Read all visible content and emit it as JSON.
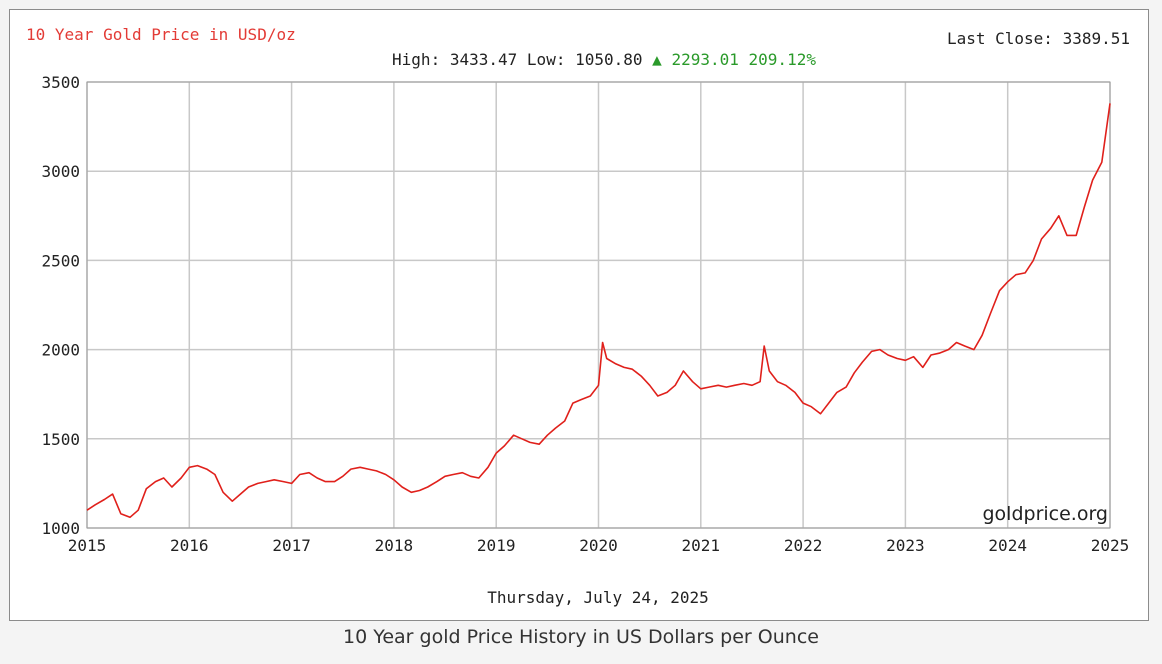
{
  "chart_data": {
    "type": "line",
    "title": "10 Year Gold Price in USD/oz",
    "stats": {
      "high_label": "High:",
      "high": "3433.47",
      "low_label": "Low:",
      "low": "1050.80",
      "change_arrow": "▲",
      "change": "2293.01",
      "change_pct": "209.12%"
    },
    "last_close_label": "Last Close:",
    "last_close": "3389.51",
    "date_label": "Thursday, July 24, 2025",
    "watermark": "goldprice.org",
    "xlabel": "",
    "ylabel": "",
    "xlim": [
      2015,
      2025
    ],
    "ylim": [
      1000,
      3500
    ],
    "x_ticks": [
      "2015",
      "2016",
      "2017",
      "2018",
      "2019",
      "2020",
      "2021",
      "2022",
      "2023",
      "2024",
      "2025"
    ],
    "y_ticks": [
      "1000",
      "1500",
      "2000",
      "2500",
      "3000",
      "3500"
    ],
    "grid": true,
    "colors": {
      "line": "#e0201b",
      "title": "#e33b36",
      "change": "#2a9a2a",
      "grid": "#c8c8c8",
      "axis_text": "#222222"
    },
    "series": [
      {
        "x": [
          2015.0,
          2015.08,
          2015.17,
          2015.25,
          2015.33,
          2015.42,
          2015.5,
          2015.58,
          2015.67,
          2015.75,
          2015.83,
          2015.92,
          2016.0,
          2016.08,
          2016.17,
          2016.25,
          2016.33,
          2016.42,
          2016.5,
          2016.58,
          2016.67,
          2016.75,
          2016.83,
          2016.92,
          2017.0,
          2017.08,
          2017.17,
          2017.25,
          2017.33,
          2017.42,
          2017.5,
          2017.58,
          2017.67,
          2017.75,
          2017.83,
          2017.92,
          2018.0,
          2018.08,
          2018.17,
          2018.25,
          2018.33,
          2018.42,
          2018.5,
          2018.58,
          2018.67,
          2018.75,
          2018.83,
          2018.92,
          2019.0,
          2019.08,
          2019.17,
          2019.25,
          2019.33,
          2019.42,
          2019.5,
          2019.58,
          2019.67,
          2019.75,
          2019.83,
          2019.92,
          2020.0,
          2020.04,
          2020.08,
          2020.17,
          2020.25,
          2020.33,
          2020.42,
          2020.5,
          2020.58,
          2020.67,
          2020.75,
          2020.83,
          2020.92,
          2021.0,
          2021.08,
          2021.17,
          2021.25,
          2021.33,
          2021.42,
          2021.5,
          2021.58,
          2021.62,
          2021.67,
          2021.75,
          2021.83,
          2021.92,
          2022.0,
          2022.08,
          2022.17,
          2022.25,
          2022.33,
          2022.42,
          2022.5,
          2022.58,
          2022.67,
          2022.75,
          2022.83,
          2022.92,
          2023.0,
          2023.08,
          2023.17,
          2023.25,
          2023.33,
          2023.42,
          2023.5,
          2023.58,
          2023.67,
          2023.75,
          2023.83,
          2023.92,
          2024.0,
          2024.08,
          2024.17,
          2024.25,
          2024.33,
          2024.42,
          2024.5,
          2024.58,
          2024.67,
          2024.75,
          2024.83,
          2024.92,
          2025.0
        ],
        "values": [
          1100,
          1130,
          1160,
          1190,
          1080,
          1060,
          1100,
          1220,
          1260,
          1280,
          1230,
          1280,
          1340,
          1350,
          1330,
          1300,
          1200,
          1150,
          1190,
          1230,
          1250,
          1260,
          1270,
          1260,
          1250,
          1300,
          1310,
          1280,
          1260,
          1260,
          1290,
          1330,
          1340,
          1330,
          1320,
          1300,
          1270,
          1230,
          1200,
          1210,
          1230,
          1260,
          1290,
          1300,
          1310,
          1290,
          1280,
          1340,
          1420,
          1460,
          1520,
          1500,
          1480,
          1470,
          1520,
          1560,
          1600,
          1700,
          1720,
          1740,
          1800,
          2040,
          1950,
          1920,
          1900,
          1890,
          1850,
          1800,
          1740,
          1760,
          1800,
          1880,
          1820,
          1780,
          1790,
          1800,
          1790,
          1800,
          1810,
          1800,
          1820,
          2020,
          1880,
          1820,
          1800,
          1760,
          1700,
          1680,
          1640,
          1700,
          1760,
          1790,
          1870,
          1930,
          1990,
          2000,
          1970,
          1950,
          1940,
          1960,
          1900,
          1970,
          1980,
          2000,
          2040,
          2020,
          2000,
          2080,
          2200,
          2330,
          2380,
          2420,
          2430,
          2500,
          2620,
          2680,
          2750,
          2640,
          2640,
          2800,
          2950,
          3050,
          3380
        ]
      }
    ]
  },
  "caption": "10 Year gold Price History in US Dollars per Ounce"
}
